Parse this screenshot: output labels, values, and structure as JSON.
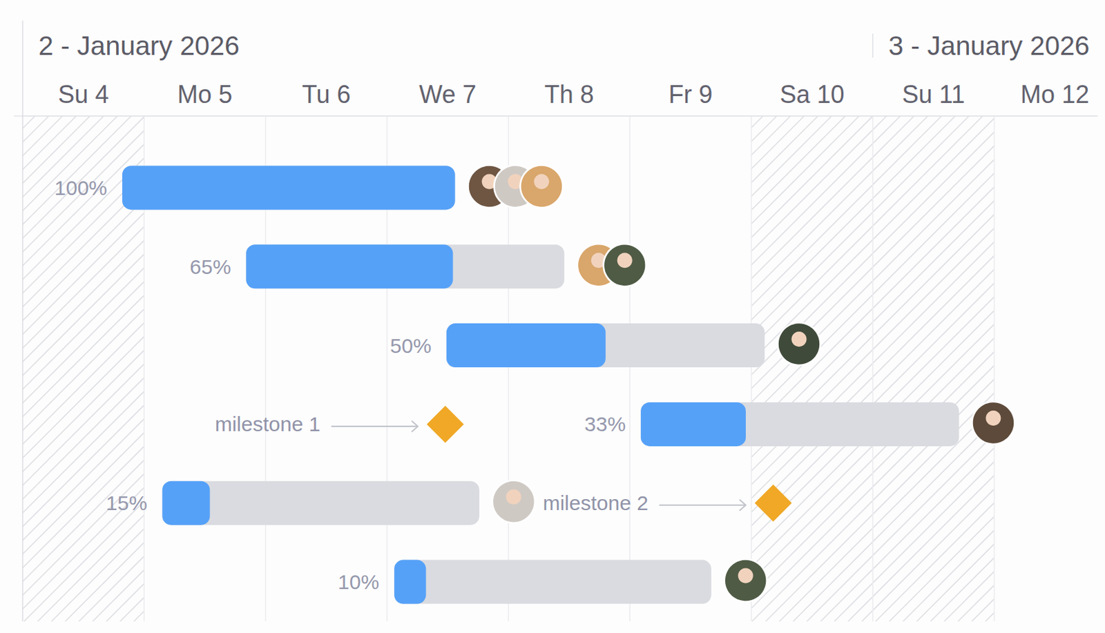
{
  "chart_data": {
    "type": "gantt",
    "periods": [
      {
        "label": "2 - January 2026",
        "start": 4
      },
      {
        "label": "3 - January 2026",
        "start": 11
      }
    ],
    "xlim": [
      4,
      12.85
    ],
    "xticks": [
      {
        "value": 4,
        "label": "Su 4"
      },
      {
        "value": 5,
        "label": "Mo 5"
      },
      {
        "value": 6,
        "label": "Tu 6"
      },
      {
        "value": 7,
        "label": "We 7"
      },
      {
        "value": 8,
        "label": "Th 8"
      },
      {
        "value": 9,
        "label": "Fr 9"
      },
      {
        "value": 10,
        "label": "Sa 10"
      },
      {
        "value": 11,
        "label": "Su 11"
      },
      {
        "value": 12,
        "label": "Mo 12"
      }
    ],
    "nonworking_days": [
      4,
      10,
      11
    ],
    "color": "#55a1f8",
    "tasks": [
      {
        "start": 4.82,
        "end": 7.56,
        "progress": 100,
        "progress_label": "100%",
        "assignees": 3
      },
      {
        "start": 5.84,
        "end": 8.46,
        "progress": 65,
        "progress_label": "65%",
        "assignees": 2
      },
      {
        "start": 7.49,
        "end": 10.11,
        "progress": 50,
        "progress_label": "50%",
        "assignees": 1
      },
      {
        "start": 9.09,
        "end": 11.71,
        "progress": 33,
        "progress_label": "33%",
        "assignees": 1
      },
      {
        "start": 5.15,
        "end": 7.76,
        "progress": 15,
        "progress_label": "15%",
        "assignees": 1
      },
      {
        "start": 7.06,
        "end": 9.67,
        "progress": 10,
        "progress_label": "10%",
        "assignees": 1
      }
    ],
    "milestones": [
      {
        "label": "milestone 1",
        "row": 3,
        "date": 7.48,
        "color": "#f0a826"
      },
      {
        "label": "milestone 2",
        "row": 4,
        "date": 10.18,
        "color": "#f0a826"
      }
    ]
  }
}
